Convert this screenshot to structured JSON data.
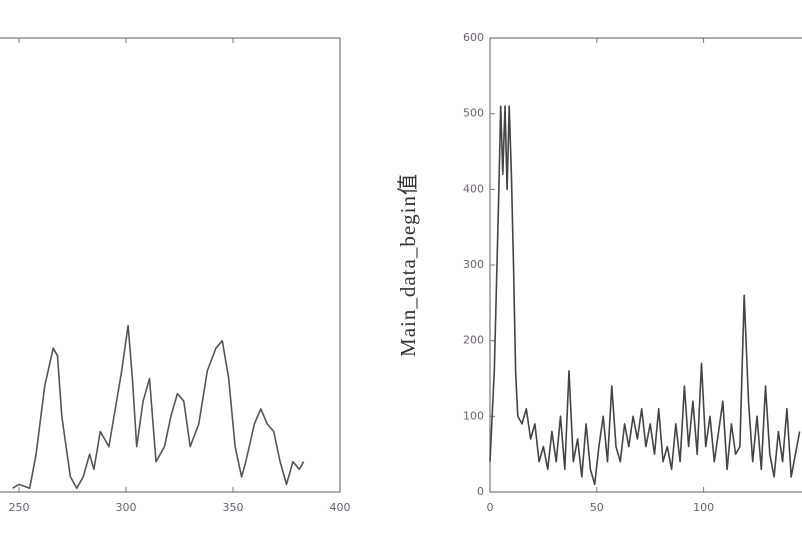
{
  "chart_data": [
    {
      "type": "line",
      "xlim": [
        200,
        400
      ],
      "ylim": [
        0,
        600
      ],
      "xticks": [
        250,
        300,
        350,
        400
      ],
      "color": "#555555",
      "x": [
        247,
        250,
        255,
        258,
        262,
        266,
        268,
        270,
        274,
        277,
        280,
        283,
        285,
        288,
        292,
        295,
        298,
        301,
        303,
        305,
        308,
        311,
        314,
        318,
        321,
        324,
        327,
        330,
        334,
        338,
        342,
        345,
        348,
        351,
        354,
        356,
        360,
        363,
        366,
        369,
        372,
        375,
        378,
        381,
        383
      ],
      "values": [
        5,
        10,
        5,
        50,
        140,
        190,
        180,
        100,
        20,
        5,
        20,
        50,
        30,
        80,
        60,
        110,
        160,
        220,
        150,
        60,
        120,
        150,
        40,
        60,
        100,
        130,
        120,
        60,
        90,
        160,
        190,
        200,
        150,
        60,
        20,
        40,
        90,
        110,
        90,
        80,
        40,
        10,
        40,
        30,
        40
      ]
    },
    {
      "type": "line",
      "xlim": [
        0,
        150
      ],
      "ylim": [
        0,
        600
      ],
      "xticks": [
        0,
        50,
        100
      ],
      "yticks": [
        0,
        100,
        200,
        300,
        400,
        500,
        600
      ],
      "ylabel": "Main_data_begin值",
      "color": "#444444",
      "x": [
        0,
        2,
        4,
        5,
        6,
        7,
        8,
        9,
        10,
        11,
        12,
        13,
        15,
        17,
        19,
        21,
        23,
        25,
        27,
        29,
        31,
        33,
        35,
        37,
        39,
        41,
        43,
        45,
        47,
        49,
        51,
        53,
        55,
        57,
        59,
        61,
        63,
        65,
        67,
        69,
        71,
        73,
        75,
        77,
        79,
        81,
        83,
        85,
        87,
        89,
        91,
        93,
        95,
        97,
        99,
        101,
        103,
        105,
        107,
        109,
        111,
        113,
        115,
        117,
        119,
        121,
        123,
        125,
        127,
        129,
        131,
        133,
        135,
        137,
        139,
        141,
        143,
        145
      ],
      "values": [
        40,
        160,
        380,
        510,
        420,
        510,
        400,
        510,
        420,
        300,
        160,
        100,
        90,
        110,
        70,
        90,
        40,
        60,
        30,
        80,
        40,
        100,
        30,
        160,
        40,
        70,
        20,
        90,
        30,
        10,
        60,
        100,
        40,
        140,
        60,
        40,
        90,
        60,
        100,
        70,
        110,
        60,
        90,
        50,
        110,
        40,
        60,
        30,
        90,
        40,
        140,
        60,
        120,
        50,
        170,
        60,
        100,
        40,
        80,
        120,
        30,
        90,
        50,
        60,
        260,
        120,
        40,
        100,
        30,
        140,
        50,
        20,
        80,
        40,
        110,
        20,
        50,
        80
      ]
    }
  ]
}
